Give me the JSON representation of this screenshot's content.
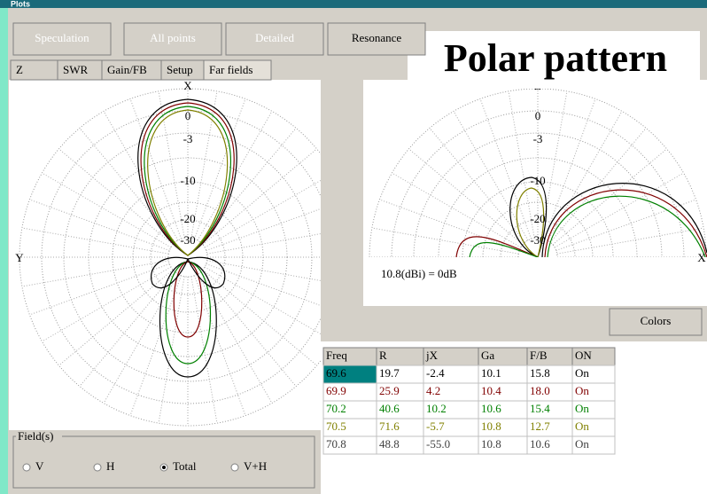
{
  "window": {
    "title": "Plots"
  },
  "toolbar": [
    "Speculation",
    "All points",
    "Detailed",
    "Resonance"
  ],
  "tabs": [
    "Z",
    "SWR",
    "Gain/FB",
    "Setup",
    "Far fields"
  ],
  "overlay": "Polar pattern",
  "plots": [
    {
      "axis_top": "X",
      "axis_side": "Y",
      "rings": [
        "0",
        "-3",
        "-10",
        "-20",
        "-30"
      ]
    },
    {
      "axis_top": "Z",
      "axis_side": "X",
      "rings": [
        "0",
        "-3",
        "-10",
        "-20",
        "-30"
      ]
    }
  ],
  "scale_note": "10.8(dBi) = 0dB",
  "colors_button": "Colors",
  "table": {
    "header": [
      "Freq",
      "R",
      "jX",
      "Ga",
      "F/B",
      "ON"
    ],
    "rows": [
      [
        "69.6",
        "19.7",
        "-2.4",
        "10.1",
        "15.8",
        "On"
      ],
      [
        "69.9",
        "25.9",
        "4.2",
        "10.4",
        "18.0",
        "On"
      ],
      [
        "70.2",
        "40.6",
        "10.2",
        "10.6",
        "15.4",
        "On"
      ],
      [
        "70.5",
        "71.6",
        "-5.7",
        "10.8",
        "12.7",
        "On"
      ],
      [
        "70.8",
        "48.8",
        "-55.0",
        "10.8",
        "10.6",
        "On"
      ]
    ]
  },
  "field": {
    "label": "Field(s)",
    "options": [
      "V",
      "H",
      "Total",
      "V+H"
    ],
    "selected": 2
  }
}
